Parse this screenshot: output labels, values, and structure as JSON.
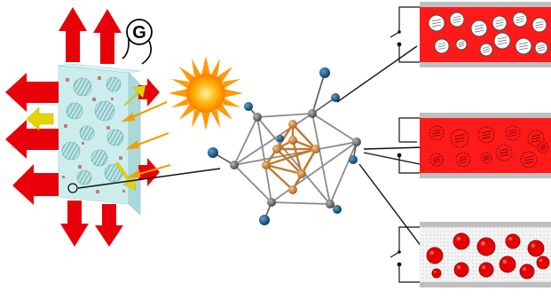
{
  "figure": {
    "field_symbol": "G",
    "panels": [
      {
        "state": "dispersed-white-clusters",
        "background": "#ff1a1a",
        "particle_fill": "#ffffff",
        "particle_edge": "#444444",
        "switch": "open"
      },
      {
        "state": "dispersed-red-clusters",
        "background": "#ff1a1a",
        "particle_fill": "#ff1a1a",
        "particle_edge": "#550000",
        "switch": "closed"
      },
      {
        "state": "red-clusters-clear-medium",
        "background": "#f4f4f4",
        "particle_fill": "#e60000",
        "particle_edge": "#990000",
        "switch": "open"
      }
    ]
  },
  "colors": {
    "arrow_red": "#e8000b",
    "arrow_yellow": "#e6d400",
    "film_face": "#c8ecec",
    "sun_core": "#ffb000",
    "sun_rays": "#ff9a00",
    "cluster_bond_gold": "#d08a3a",
    "cluster_bond_grey": "#8a8a8a",
    "ligand_blue": "#1d5b8c",
    "ligand_grey": "#7a7a7a"
  },
  "icons": [
    "gravity-field-icon",
    "sun-icon",
    "switch-icon"
  ]
}
